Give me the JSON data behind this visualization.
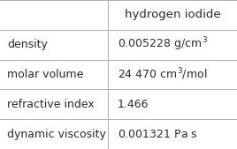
{
  "title": "hydrogen iodide",
  "rows": [
    {
      "property": "density",
      "value": "0.005228 g/cm³"
    },
    {
      "property": "molar volume",
      "value": "24 470 cm³/mol"
    },
    {
      "property": "refractive index",
      "value": "1.466"
    },
    {
      "property": "dynamic viscosity",
      "value": "0.001321 Pa s"
    }
  ],
  "col_split": 0.455,
  "bg_color": "#ffffff",
  "grid_color": "#b0b0b0",
  "text_color": "#2b2b2b",
  "header_font_size": 9.5,
  "cell_font_size": 9.0,
  "fig_width": 2.68,
  "fig_height": 1.69,
  "dpi": 100
}
